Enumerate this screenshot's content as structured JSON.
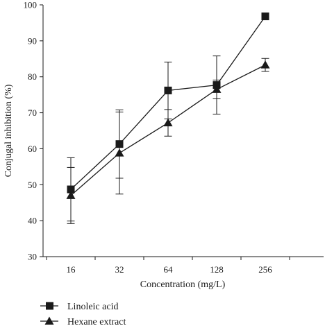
{
  "chart_data": {
    "type": "line",
    "title": "",
    "xlabel": "Concentration (mg/L)",
    "ylabel": "Conjugal inhibition (%)",
    "categories": [
      "16",
      "32",
      "64",
      "128",
      "256"
    ],
    "ylim": [
      30,
      100
    ],
    "yticks": [
      30,
      40,
      50,
      60,
      70,
      80,
      90,
      100
    ],
    "grid": false,
    "legend_position": "bottom-left",
    "series": [
      {
        "name": "Linoleic acid",
        "marker": "square",
        "values": [
          48.7,
          61.3,
          76.2,
          77.7,
          96.8
        ],
        "error": [
          8.8,
          9.5,
          7.9,
          8.1,
          0
        ]
      },
      {
        "name": "Hexane extract",
        "marker": "triangle",
        "values": [
          47.0,
          58.8,
          67.2,
          76.5,
          83.3
        ],
        "error": [
          7.8,
          11.4,
          3.7,
          2.6,
          1.8
        ]
      }
    ]
  },
  "colors": {
    "ink": "#1a1a1a"
  }
}
